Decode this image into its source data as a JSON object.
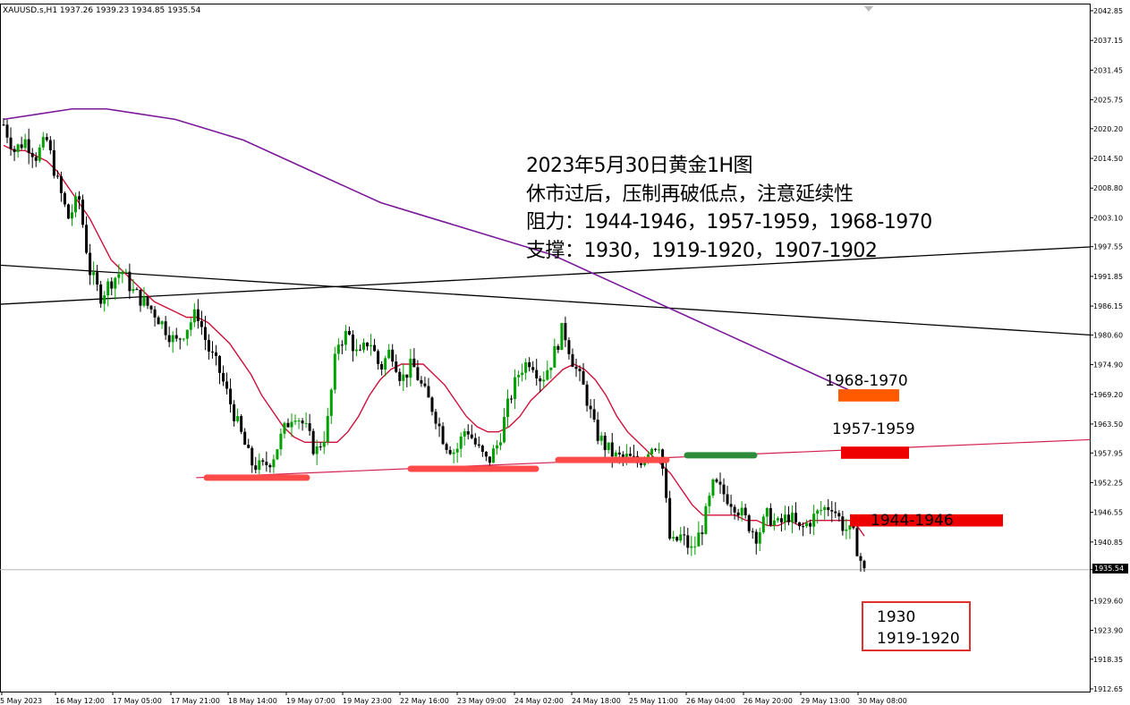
{
  "symbol_info": "XAUUSD.s,H1  1937.26 1939.23 1934.85 1935.54",
  "notes": [
    "2023年5月30日黄金1H图",
    "休市过后，压制再破低点，注意延续性",
    "阻力：1944-1946，1957-1959，1968-1970",
    "支撑：1930，1919-1920，1907-1902"
  ],
  "levels": {
    "r3": "1968-1970",
    "r2": "1957-1959",
    "r1": "1944-1946",
    "s1": "1930",
    "s2": "1919-1920"
  },
  "current_price": "1935.54",
  "colors": {
    "bull": "#00a000",
    "ma_fast": "#d0103a",
    "ma_slow": "#7a1a9a",
    "trendline_red": "#d42050",
    "resist_red": "#ee0000",
    "resist_orange": "#ff5a00",
    "support_marker": "#ff4a4a",
    "green_marker": "#2e8b3a"
  },
  "chart_data": {
    "type": "candlestick",
    "title": "XAUUSD.s,H1",
    "ylim": [
      1912.65,
      2042.85
    ],
    "y_ticks": [
      "2042.85",
      "2037.15",
      "2031.45",
      "2025.75",
      "2020.20",
      "2014.50",
      "2008.80",
      "2003.10",
      "1997.55",
      "1991.85",
      "1986.15",
      "1980.60",
      "1974.90",
      "1969.20",
      "1963.50",
      "1957.95",
      "1952.25",
      "1946.55",
      "1940.85",
      "1935.54",
      "1929.60",
      "1923.90",
      "1918.35",
      "1912.65"
    ],
    "x_ticks": [
      "15 May 2023",
      "16 May 12:00",
      "17 May 05:00",
      "17 May 21:00",
      "18 May 14:00",
      "19 May 07:00",
      "19 May 23:00",
      "22 May 16:00",
      "23 May 09:00",
      "24 May 02:00",
      "24 May 18:00",
      "25 May 11:00",
      "26 May 04:00",
      "26 May 20:00",
      "29 May 13:00",
      "30 May 08:00"
    ],
    "close_path": [
      2021,
      2016,
      2018,
      2015,
      2018,
      2010,
      2003,
      2007,
      1993,
      1988,
      1991,
      1993,
      1989,
      1987,
      1985,
      1982,
      1979,
      1982,
      1985,
      1978,
      1974,
      1968,
      1962,
      1956,
      1955,
      1957,
      1962,
      1966,
      1963,
      1958,
      1962,
      1979,
      1981,
      1976,
      1980,
      1974,
      1978,
      1972,
      1975,
      1970,
      1966,
      1960,
      1958,
      1963,
      1959,
      1956,
      1960,
      1968,
      1974,
      1976,
      1972,
      1976,
      1982,
      1975,
      1970,
      1962,
      1959,
      1957,
      1957,
      1956,
      1959,
      1960,
      1940,
      1942,
      1939,
      1944,
      1952,
      1950,
      1948,
      1945,
      1942,
      1946,
      1944,
      1946,
      1943,
      1945,
      1947,
      1948,
      1944,
      1942,
      1935
    ],
    "series": [
      {
        "name": "MA fast",
        "values": [
          2017,
          2016,
          2016,
          2015,
          2014,
          2012,
          2009,
          2006,
          2003,
          1999,
          1995,
          1993,
          1991,
          1989,
          1987,
          1986,
          1985,
          1984,
          1984,
          1983,
          1981,
          1979,
          1976,
          1973,
          1969,
          1966,
          1963,
          1961,
          1960,
          1960,
          1960,
          1960,
          1962,
          1965,
          1969,
          1972,
          1974,
          1975,
          1975,
          1975,
          1973,
          1971,
          1968,
          1965,
          1963,
          1962,
          1962,
          1963,
          1965,
          1968,
          1970,
          1972,
          1974,
          1975,
          1974,
          1972,
          1969,
          1965,
          1962,
          1960,
          1958,
          1956,
          1954,
          1951,
          1948,
          1946,
          1946,
          1946,
          1946,
          1945,
          1945,
          1944,
          1944,
          1945,
          1944,
          1945,
          1945,
          1945,
          1945,
          1945,
          1942
        ]
      },
      {
        "name": "MA slow",
        "values": [
          2022,
          2023,
          2024,
          2024,
          2023,
          2022,
          2020,
          2018,
          2015,
          2012,
          2009,
          2006,
          2004,
          2002,
          2000,
          1998,
          1996,
          1993,
          1990,
          1987,
          1984,
          1981,
          1978,
          1975,
          1972,
          1969
        ]
      }
    ],
    "trendlines": [
      {
        "from": [
          0,
          1994
        ],
        "to": [
          100,
          1980.6
        ]
      },
      {
        "from": [
          0,
          1986.5
        ],
        "to": [
          100,
          1997.5
        ]
      },
      {
        "from": [
          18,
          1953.2
        ],
        "to": [
          100,
          1960.5
        ]
      }
    ],
    "zones": [
      {
        "label": "1968-1970",
        "low": 1968,
        "high": 1970
      },
      {
        "label": "1957-1959",
        "low": 1957,
        "high": 1959
      },
      {
        "label": "1944-1946",
        "low": 1944,
        "high": 1946
      }
    ],
    "last_price": 1935.54
  }
}
